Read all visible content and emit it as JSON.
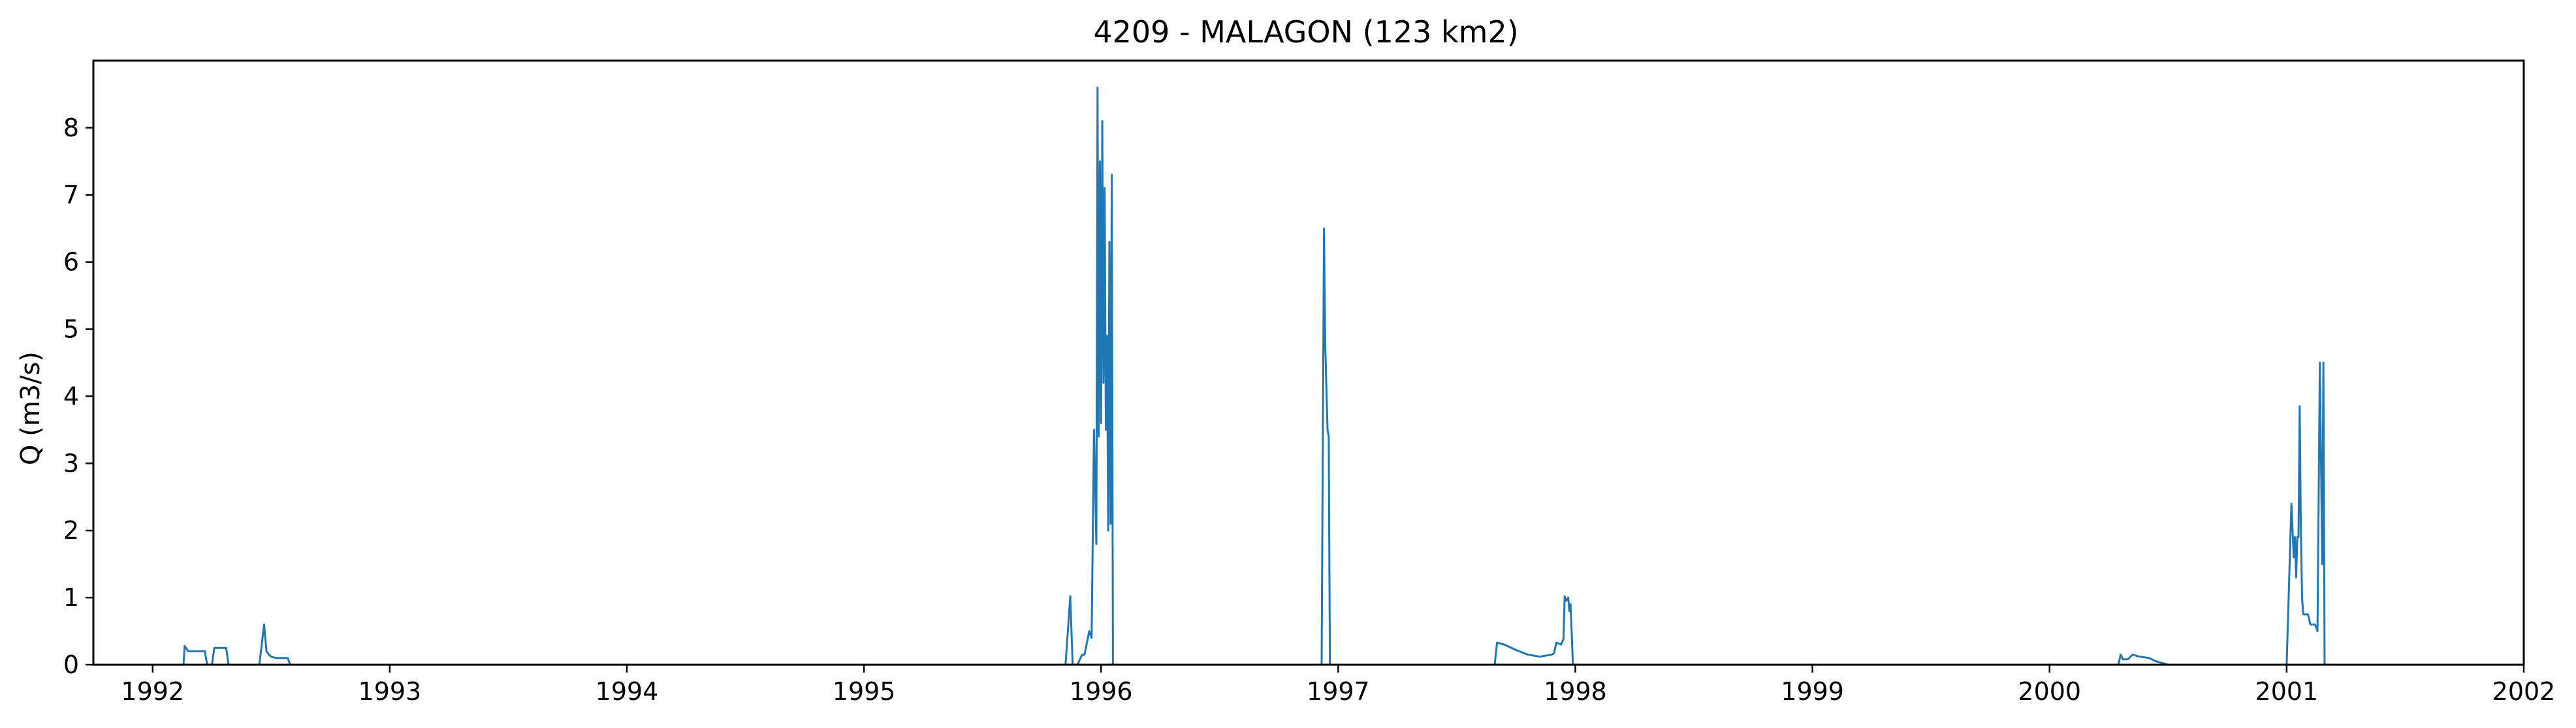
{
  "chart_data": {
    "type": "line",
    "title": "4209 - MALAGON (123 km2)",
    "xlabel": "",
    "ylabel": "Q (m3/s)",
    "xlim": [
      1991.75,
      2002.0
    ],
    "ylim": [
      0,
      9.0
    ],
    "x_ticks": [
      "1992",
      "1993",
      "1994",
      "1995",
      "1996",
      "1997",
      "1998",
      "1999",
      "2000",
      "2001",
      "2002"
    ],
    "y_ticks": [
      "0",
      "1",
      "2",
      "3",
      "4",
      "5",
      "6",
      "7",
      "8"
    ],
    "grid": false,
    "legend": "none",
    "line_color": "#1f77b4",
    "series": [
      {
        "x": [
          1991.75,
          1992.13,
          1992.135,
          1992.15,
          1992.16,
          1992.2,
          1992.22,
          1992.23,
          1992.25,
          1992.26,
          1992.3,
          1992.31,
          1992.32,
          1992.45,
          1992.47,
          1992.48,
          1992.49,
          1992.5,
          1992.52,
          1992.55,
          1992.57,
          1992.58,
          1995.85,
          1995.87,
          1995.88,
          1995.9,
          1995.92,
          1995.93,
          1995.95,
          1995.96,
          1995.97,
          1995.98,
          1995.985,
          1995.99,
          1995.995,
          1996.0,
          1996.005,
          1996.01,
          1996.015,
          1996.02,
          1996.025,
          1996.03,
          1996.035,
          1996.04,
          1996.045,
          1996.05,
          1996.055,
          1996.06,
          1996.065,
          1996.07,
          1996.075,
          1996.08,
          1996.09,
          1996.93,
          1996.94,
          1996.945,
          1996.955,
          1996.96,
          1996.965,
          1996.97,
          1997.66,
          1997.67,
          1997.7,
          1997.75,
          1997.8,
          1997.85,
          1997.9,
          1997.91,
          1997.92,
          1997.94,
          1997.95,
          1997.955,
          1997.96,
          1997.97,
          1997.975,
          1997.98,
          1997.99,
          1998.0,
          1998.01,
          2000.29,
          2000.3,
          2000.31,
          2000.33,
          2000.35,
          2000.38,
          2000.42,
          2000.45,
          2000.5,
          2000.52,
          2001.0,
          2001.02,
          2001.03,
          2001.035,
          2001.04,
          2001.045,
          2001.05,
          2001.055,
          2001.06,
          2001.065,
          2001.07,
          2001.08,
          2001.085,
          2001.09,
          2001.1,
          2001.12,
          2001.13,
          2001.14,
          2001.15,
          2001.155,
          2001.16,
          2001.165,
          2001.17,
          2001.18,
          2002.0
        ],
        "values": [
          0,
          0,
          0.28,
          0.2,
          0.2,
          0.2,
          0.2,
          0,
          0,
          0.25,
          0.25,
          0.25,
          0,
          0,
          0.6,
          0.2,
          0.15,
          0.12,
          0.1,
          0.1,
          0.1,
          0,
          0,
          1.02,
          0,
          0,
          0.15,
          0.15,
          0.5,
          0.4,
          3.5,
          1.8,
          8.6,
          3.4,
          7.5,
          3.6,
          8.1,
          4.2,
          7.1,
          3.5,
          4.9,
          2.0,
          6.3,
          2.1,
          7.3,
          0,
          0,
          0,
          0,
          0,
          0,
          0,
          0,
          0,
          6.5,
          4.8,
          3.5,
          3.4,
          0,
          0,
          0,
          0.33,
          0.3,
          0.22,
          0.15,
          0.12,
          0.15,
          0.17,
          0.33,
          0.3,
          0.38,
          1.02,
          0.95,
          1.0,
          0.8,
          0.9,
          0,
          0,
          0,
          0,
          0.15,
          0.08,
          0.08,
          0.15,
          0.12,
          0.1,
          0.05,
          0,
          0,
          0,
          2.4,
          1.6,
          1.9,
          1.3,
          1.9,
          1.9,
          3.85,
          2.0,
          1.0,
          0.75,
          0.75,
          0.75,
          0.75,
          0.6,
          0.6,
          0.5,
          4.5,
          1.5,
          4.5,
          0,
          0,
          0,
          0,
          0
        ]
      }
    ]
  }
}
